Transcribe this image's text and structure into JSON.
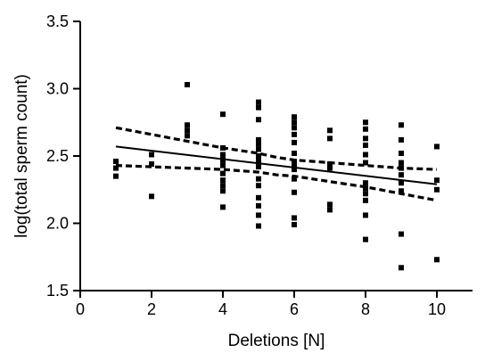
{
  "chart_data": {
    "type": "scatter",
    "xlabel": "Deletions [N]",
    "ylabel": "log(total sperm count)",
    "xlim": [
      0,
      11
    ],
    "ylim": [
      1.5,
      3.5
    ],
    "xticks": [
      0,
      2,
      4,
      6,
      8,
      10
    ],
    "xtick_labels": [
      "0",
      "2",
      "4",
      "6",
      "8",
      "10"
    ],
    "yticks": [
      1.5,
      2.0,
      2.5,
      3.0,
      3.5
    ],
    "ytick_labels": [
      "1.5",
      "2.0",
      "2.5",
      "3.0",
      "3.5"
    ],
    "grid": false,
    "points": [
      {
        "x": 1,
        "y": 2.46
      },
      {
        "x": 1,
        "y": 2.41
      },
      {
        "x": 1,
        "y": 2.35
      },
      {
        "x": 2,
        "y": 2.51
      },
      {
        "x": 2,
        "y": 2.44
      },
      {
        "x": 2,
        "y": 2.2
      },
      {
        "x": 3,
        "y": 3.03
      },
      {
        "x": 3,
        "y": 2.73
      },
      {
        "x": 3,
        "y": 2.69
      },
      {
        "x": 3,
        "y": 2.65
      },
      {
        "x": 4,
        "y": 2.81
      },
      {
        "x": 4,
        "y": 2.56
      },
      {
        "x": 4,
        "y": 2.51
      },
      {
        "x": 4,
        "y": 2.47
      },
      {
        "x": 4,
        "y": 2.43
      },
      {
        "x": 4,
        "y": 2.37
      },
      {
        "x": 4,
        "y": 2.32
      },
      {
        "x": 4,
        "y": 2.28
      },
      {
        "x": 4,
        "y": 2.24
      },
      {
        "x": 4,
        "y": 2.12
      },
      {
        "x": 5,
        "y": 2.9
      },
      {
        "x": 5,
        "y": 2.86
      },
      {
        "x": 5,
        "y": 2.77
      },
      {
        "x": 5,
        "y": 2.62
      },
      {
        "x": 5,
        "y": 2.59
      },
      {
        "x": 5,
        "y": 2.55
      },
      {
        "x": 5,
        "y": 2.5
      },
      {
        "x": 5,
        "y": 2.46
      },
      {
        "x": 5,
        "y": 2.42
      },
      {
        "x": 5,
        "y": 2.33
      },
      {
        "x": 5,
        "y": 2.28
      },
      {
        "x": 5,
        "y": 2.19
      },
      {
        "x": 5,
        "y": 2.13
      },
      {
        "x": 5,
        "y": 2.06
      },
      {
        "x": 5,
        "y": 1.98
      },
      {
        "x": 6,
        "y": 2.79
      },
      {
        "x": 6,
        "y": 2.75
      },
      {
        "x": 6,
        "y": 2.71
      },
      {
        "x": 6,
        "y": 2.66
      },
      {
        "x": 6,
        "y": 2.6
      },
      {
        "x": 6,
        "y": 2.52
      },
      {
        "x": 6,
        "y": 2.46
      },
      {
        "x": 6,
        "y": 2.43
      },
      {
        "x": 6,
        "y": 2.4
      },
      {
        "x": 6,
        "y": 2.33
      },
      {
        "x": 6,
        "y": 2.23
      },
      {
        "x": 6,
        "y": 2.04
      },
      {
        "x": 6,
        "y": 1.99
      },
      {
        "x": 7,
        "y": 2.69
      },
      {
        "x": 7,
        "y": 2.63
      },
      {
        "x": 7,
        "y": 2.44
      },
      {
        "x": 7,
        "y": 2.41
      },
      {
        "x": 7,
        "y": 2.14
      },
      {
        "x": 7,
        "y": 2.1
      },
      {
        "x": 8,
        "y": 2.75
      },
      {
        "x": 8,
        "y": 2.7
      },
      {
        "x": 8,
        "y": 2.63
      },
      {
        "x": 8,
        "y": 2.58
      },
      {
        "x": 8,
        "y": 2.51
      },
      {
        "x": 8,
        "y": 2.45
      },
      {
        "x": 8,
        "y": 2.3
      },
      {
        "x": 8,
        "y": 2.26
      },
      {
        "x": 8,
        "y": 2.22
      },
      {
        "x": 8,
        "y": 2.17
      },
      {
        "x": 8,
        "y": 2.06
      },
      {
        "x": 8,
        "y": 1.88
      },
      {
        "x": 9,
        "y": 2.73
      },
      {
        "x": 9,
        "y": 2.62
      },
      {
        "x": 9,
        "y": 2.52
      },
      {
        "x": 9,
        "y": 2.45
      },
      {
        "x": 9,
        "y": 2.41
      },
      {
        "x": 9,
        "y": 2.36
      },
      {
        "x": 9,
        "y": 2.3
      },
      {
        "x": 9,
        "y": 2.24
      },
      {
        "x": 9,
        "y": 1.92
      },
      {
        "x": 9,
        "y": 1.67
      },
      {
        "x": 10,
        "y": 2.57
      },
      {
        "x": 10,
        "y": 2.32
      },
      {
        "x": 10,
        "y": 2.25
      },
      {
        "x": 10,
        "y": 1.73
      }
    ],
    "fit_line": {
      "x": [
        1,
        10
      ],
      "y": [
        2.57,
        2.29
      ]
    },
    "ci_upper": {
      "x": [
        1,
        2,
        3,
        4,
        5,
        5.5,
        6,
        7,
        8,
        9,
        10
      ],
      "y": [
        2.71,
        2.66,
        2.61,
        2.56,
        2.52,
        2.49,
        2.47,
        2.45,
        2.43,
        2.41,
        2.4
      ]
    },
    "ci_lower": {
      "x": [
        1,
        2,
        3,
        4,
        5,
        5.5,
        6,
        7,
        8,
        9,
        10
      ],
      "y": [
        2.43,
        2.42,
        2.41,
        2.4,
        2.38,
        2.36,
        2.35,
        2.31,
        2.27,
        2.22,
        2.17
      ]
    }
  }
}
